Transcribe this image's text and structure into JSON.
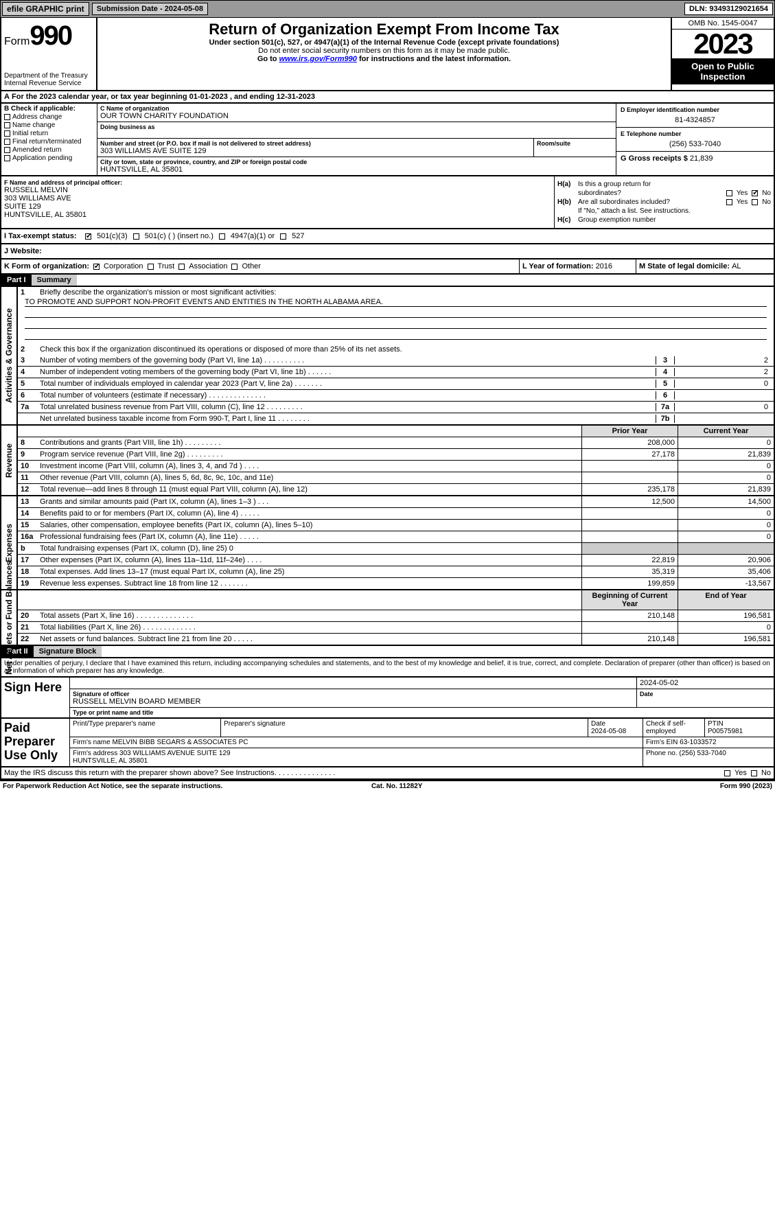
{
  "topbar": {
    "efile": "efile GRAPHIC print",
    "subdate_label": "Submission Date - ",
    "subdate": "2024-05-08",
    "dln_label": "DLN: ",
    "dln": "93493129021654"
  },
  "header": {
    "form": "Form",
    "form_num": "990",
    "dept": "Department of the Treasury\nInternal Revenue Service",
    "title": "Return of Organization Exempt From Income Tax",
    "sub1": "Under section 501(c), 527, or 4947(a)(1) of the Internal Revenue Code (except private foundations)",
    "sub2": "Do not enter social security numbers on this form as it may be made public.",
    "sub3_pre": "Go to ",
    "sub3_link": "www.irs.gov/Form990",
    "sub3_post": " for instructions and the latest information.",
    "omb": "OMB No. 1545-0047",
    "year": "2023",
    "inspect": "Open to Public Inspection"
  },
  "a": {
    "line": "For the 2023 calendar year, or tax year beginning 01-01-2023   , and ending 12-31-2023",
    "b_label": "B Check if applicable:",
    "b_items": [
      "Address change",
      "Name change",
      "Initial return",
      "Final return/terminated",
      "Amended return",
      "Application pending"
    ],
    "c_name_lbl": "C Name of organization",
    "c_name": "OUR TOWN CHARITY FOUNDATION",
    "dba_lbl": "Doing business as",
    "street_lbl": "Number and street (or P.O. box if mail is not delivered to street address)",
    "street": "303 WILLIAMS AVE SUITE 129",
    "room_lbl": "Room/suite",
    "city_lbl": "City or town, state or province, country, and ZIP or foreign postal code",
    "city": "HUNTSVILLE, AL  35801",
    "d_lbl": "D Employer identification number",
    "d_val": "81-4324857",
    "e_lbl": "E Telephone number",
    "e_val": "(256) 533-7040",
    "g_lbl": "G Gross receipts $ ",
    "g_val": "21,839"
  },
  "f": {
    "lbl": "F  Name and address of principal officer:",
    "name": "RUSSELL MELVIN",
    "addr1": "303 WILLIAMS AVE",
    "addr2": "SUITE 129",
    "addr3": "HUNTSVILLE, AL  35801"
  },
  "h": {
    "a": "Is this a group return for",
    "a2": "subordinates?",
    "b": "Are all subordinates included?",
    "note": "If \"No,\" attach a list. See instructions.",
    "c": "Group exemption number"
  },
  "i": {
    "lbl": "I   Tax-exempt status:",
    "opts": [
      "501(c)(3)",
      "501(c) (  ) (insert no.)",
      "4947(a)(1) or",
      "527"
    ]
  },
  "j": {
    "lbl": "J  Website:"
  },
  "k": {
    "lbl": "K Form of organization:",
    "opts": [
      "Corporation",
      "Trust",
      "Association",
      "Other"
    ]
  },
  "l": {
    "lbl": "L Year of formation: ",
    "val": "2016"
  },
  "m": {
    "lbl": "M State of legal domicile: ",
    "val": "AL"
  },
  "part1": {
    "hdr": "Part I",
    "title": "Summary"
  },
  "summary": {
    "l1": "Briefly describe the organization's mission or most significant activities:",
    "mission": "TO PROMOTE AND SUPPORT NON-PROFIT EVENTS AND ENTITIES IN THE NORTH ALABAMA AREA.",
    "l2": "Check this box      if the organization discontinued its operations or disposed of more than 25% of its net assets.",
    "rows": [
      {
        "n": "3",
        "t": "Number of voting members of the governing body (Part VI, line 1a)  .   .   .   .   .   .   .   .   .   .",
        "rn": "3",
        "v": "2"
      },
      {
        "n": "4",
        "t": "Number of independent voting members of the governing body (Part VI, line 1b)  .   .   .   .   .   .",
        "rn": "4",
        "v": "2"
      },
      {
        "n": "5",
        "t": "Total number of individuals employed in calendar year 2023 (Part V, line 2a)  .   .   .   .   .   .   .",
        "rn": "5",
        "v": "0"
      },
      {
        "n": "6",
        "t": "Total number of volunteers (estimate if necessary)   .   .   .   .   .   .   .   .   .   .   .   .   .   .",
        "rn": "6",
        "v": ""
      },
      {
        "n": "7a",
        "t": "Total unrelated business revenue from Part VIII, column (C), line 12  .   .   .   .   .   .   .   .   .",
        "rn": "7a",
        "v": "0"
      },
      {
        "n": "",
        "t": "Net unrelated business taxable income from Form 990-T, Part I, line 11  .   .   .   .   .   .   .   .",
        "rn": "7b",
        "v": ""
      }
    ]
  },
  "fin": {
    "hdr_prior": "Prior Year",
    "hdr_curr": "Current Year",
    "revenue": [
      {
        "n": "8",
        "t": "Contributions and grants (Part VIII, line 1h)   .   .   .   .   .   .   .   .   .",
        "p": "208,000",
        "c": "0"
      },
      {
        "n": "9",
        "t": "Program service revenue (Part VIII, line 2g)   .   .   .   .   .   .   .   .   .",
        "p": "27,178",
        "c": "21,839"
      },
      {
        "n": "10",
        "t": "Investment income (Part VIII, column (A), lines 3, 4, and 7d )   .   .   .   .",
        "p": "",
        "c": "0"
      },
      {
        "n": "11",
        "t": "Other revenue (Part VIII, column (A), lines 5, 6d, 8c, 9c, 10c, and 11e)",
        "p": "",
        "c": "0"
      },
      {
        "n": "12",
        "t": "Total revenue—add lines 8 through 11 (must equal Part VIII, column (A), line 12)",
        "p": "235,178",
        "c": "21,839"
      }
    ],
    "expenses": [
      {
        "n": "13",
        "t": "Grants and similar amounts paid (Part IX, column (A), lines 1–3 )   .   .   .",
        "p": "12,500",
        "c": "14,500"
      },
      {
        "n": "14",
        "t": "Benefits paid to or for members (Part IX, column (A), line 4)  .   .   .   .   .",
        "p": "",
        "c": "0"
      },
      {
        "n": "15",
        "t": "Salaries, other compensation, employee benefits (Part IX, column (A), lines 5–10)",
        "p": "",
        "c": "0"
      },
      {
        "n": "16a",
        "t": "Professional fundraising fees (Part IX, column (A), line 11e)  .   .   .   .   .",
        "p": "",
        "c": "0"
      },
      {
        "n": "b",
        "t": "Total fundraising expenses (Part IX, column (D), line 25) 0",
        "p": "shade",
        "c": "shade"
      },
      {
        "n": "17",
        "t": "Other expenses (Part IX, column (A), lines 11a–11d, 11f–24e)  .   .   .   .",
        "p": "22,819",
        "c": "20,906"
      },
      {
        "n": "18",
        "t": "Total expenses. Add lines 13–17 (must equal Part IX, column (A), line 25)",
        "p": "35,319",
        "c": "35,406"
      },
      {
        "n": "19",
        "t": "Revenue less expenses. Subtract line 18 from line 12  .   .   .   .   .   .   .",
        "p": "199,859",
        "c": "-13,567"
      }
    ],
    "hdr_beg": "Beginning of Current Year",
    "hdr_end": "End of Year",
    "net": [
      {
        "n": "20",
        "t": "Total assets (Part X, line 16)  .   .   .   .   .   .   .   .   .   .   .   .   .   .",
        "p": "210,148",
        "c": "196,581"
      },
      {
        "n": "21",
        "t": "Total liabilities (Part X, line 26)  .   .   .   .   .   .   .   .   .   .   .   .   .",
        "p": "",
        "c": "0"
      },
      {
        "n": "22",
        "t": "Net assets or fund balances. Subtract line 21 from line 20  .   .   .   .   .",
        "p": "210,148",
        "c": "196,581"
      }
    ]
  },
  "part2": {
    "hdr": "Part II",
    "title": "Signature Block"
  },
  "sig": {
    "decl": "Under penalties of perjury, I declare that I have examined this return, including accompanying schedules and statements, and to the best of my knowledge and belief, it is true, correct, and complete. Declaration of preparer (other than officer) is based on all information of which preparer has any knowledge.",
    "here": "Sign Here",
    "date": "2024-05-02",
    "sig_lbl": "Signature of officer",
    "officer": "RUSSELL MELVIN  BOARD MEMBER",
    "type_lbl": "Type or print name and title",
    "date_lbl": "Date"
  },
  "prep": {
    "lbl": "Paid Preparer Use Only",
    "h1": "Print/Type preparer's name",
    "h2": "Preparer's signature",
    "h3": "Date",
    "h3v": "2024-05-08",
    "h4": "Check      if self-employed",
    "h5": "PTIN",
    "h5v": "P00575981",
    "firm_lbl": "Firm's name",
    "firm": "MELVIN BIBB SEGARS & ASSOCIATES PC",
    "ein_lbl": "Firm's EIN",
    "ein": "63-1033572",
    "addr_lbl": "Firm's address",
    "addr": "303 WILLIAMS AVENUE SUITE 129\nHUNTSVILLE, AL  35801",
    "phone_lbl": "Phone no.",
    "phone": "(256) 533-7040"
  },
  "last": "May the IRS discuss this return with the preparer shown above? See Instructions.   .   .   .   .   .   .   .   .   .   .   .   .   .   .",
  "footer": {
    "l": "For Paperwork Reduction Act Notice, see the separate instructions.",
    "m": "Cat. No. 11282Y",
    "r": "Form 990 (2023)"
  }
}
